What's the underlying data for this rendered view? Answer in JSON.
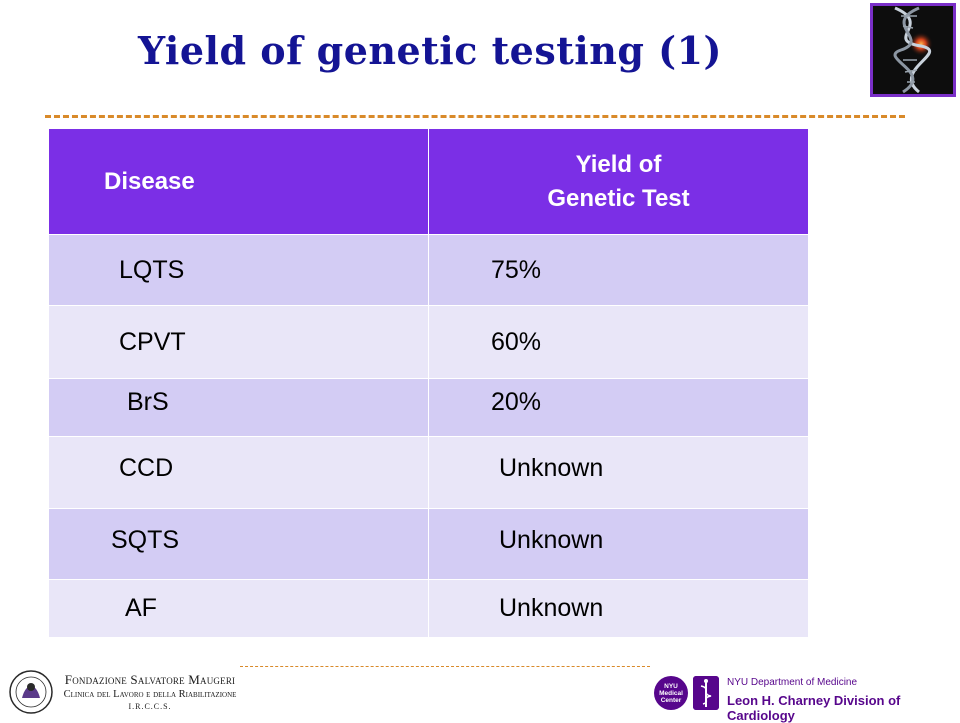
{
  "slide": {
    "title": "Yield of genetic testing (1)"
  },
  "table": {
    "headers": {
      "disease": "Disease",
      "yield_line1": "Yield of",
      "yield_line2": "Genetic Test"
    },
    "rows": [
      {
        "disease": "LQTS",
        "yield": "75%"
      },
      {
        "disease": "CPVT",
        "yield": "60%"
      },
      {
        "disease": "BrS",
        "yield": "20%"
      },
      {
        "disease": "CCD",
        "yield": "Unknown"
      },
      {
        "disease": "SQTS",
        "yield": "Unknown"
      },
      {
        "disease": "AF",
        "yield": "Unknown"
      }
    ]
  },
  "footer": {
    "left_logo": {
      "name": "Fondazione Salvatore Maugeri",
      "subtitle": "Clinica del Lavoro e della Riabilitazione",
      "irccs": "I.R.C.C.S."
    },
    "right_logo": {
      "nyu_badge_line1": "NYU",
      "nyu_badge_line2": "Medical",
      "nyu_badge_line3": "Center",
      "department": "NYU Department of Medicine",
      "division": "Leon H. Charney Division of Cardiology"
    }
  },
  "colors": {
    "title": "#141494",
    "header_bg": "#7b2fe6",
    "row_dark": "#d3ccf4",
    "row_light": "#e9e6f8",
    "divider": "#d98a2a",
    "nyu_purple": "#57068c"
  }
}
